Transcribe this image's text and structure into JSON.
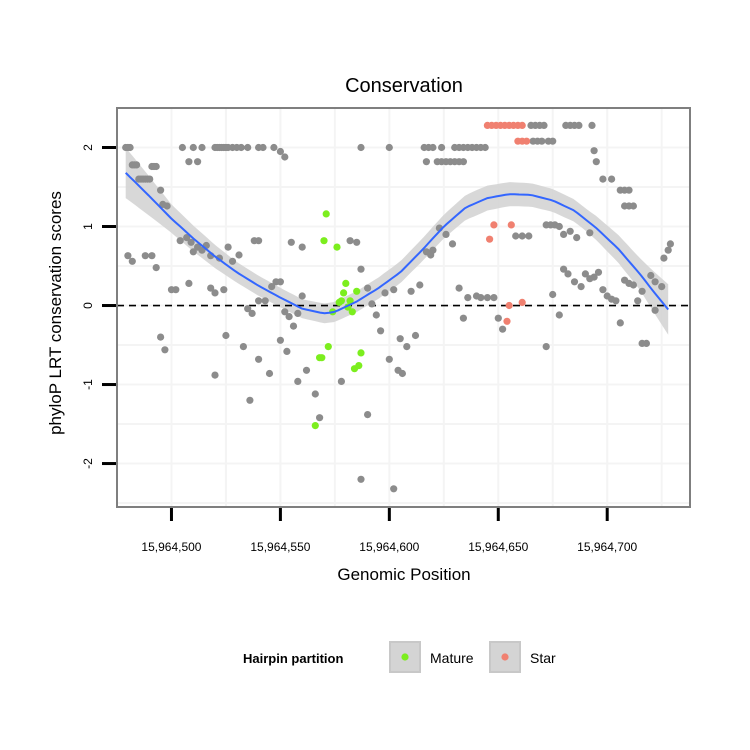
{
  "chart_data": {
    "type": "scatter",
    "title": "Conservation",
    "xlabel": "Genomic Position",
    "ylabel": "phyloP LRT conservation scores",
    "xlim": [
      15964475,
      15964738
    ],
    "ylim": [
      -2.55,
      2.5
    ],
    "x_ticks": [
      {
        "value": 15964500,
        "label": "15,964,500"
      },
      {
        "value": 15964550,
        "label": "15,964,550"
      },
      {
        "value": 15964600,
        "label": "15,964,600"
      },
      {
        "value": 15964650,
        "label": "15,964,650"
      },
      {
        "value": 15964700,
        "label": "15,964,700"
      }
    ],
    "y_ticks": [
      {
        "value": -2,
        "label": "-2"
      },
      {
        "value": -1,
        "label": "-1"
      },
      {
        "value": 0,
        "label": "0"
      },
      {
        "value": 1,
        "label": "1"
      },
      {
        "value": 2,
        "label": "2"
      }
    ],
    "reference_line": {
      "y": 0,
      "style": "dashed"
    },
    "grid": true,
    "colors": {
      "other": "#8c8c8c",
      "mature": "#7cee1e",
      "star": "#f08070",
      "smooth": "#3366ff",
      "band": "#d4d4d4",
      "panel_border": "#7f7f7f",
      "grid": "#f4f4f4"
    },
    "series": [
      {
        "name": "Other",
        "points": [
          [
            15964479,
            2.0
          ],
          [
            15964480,
            2.0
          ],
          [
            15964481,
            2.0
          ],
          [
            15964482,
            1.78
          ],
          [
            15964483,
            1.78
          ],
          [
            15964484,
            1.78
          ],
          [
            15964485,
            1.6
          ],
          [
            15964486,
            1.6
          ],
          [
            15964487,
            1.6
          ],
          [
            15964488,
            1.6
          ],
          [
            15964489,
            1.6
          ],
          [
            15964490,
            1.6
          ],
          [
            15964491,
            1.76
          ],
          [
            15964492,
            1.76
          ],
          [
            15964493,
            1.76
          ],
          [
            15964495,
            1.46
          ],
          [
            15964496,
            1.28
          ],
          [
            15964498,
            1.26
          ],
          [
            15964505,
            2.0
          ],
          [
            15964510,
            2.0
          ],
          [
            15964508,
            1.82
          ],
          [
            15964512,
            1.82
          ],
          [
            15964514,
            2.0
          ],
          [
            15964520,
            2.0
          ],
          [
            15964521,
            2.0
          ],
          [
            15964522,
            2.0
          ],
          [
            15964523,
            2.0
          ],
          [
            15964524,
            2.0
          ],
          [
            15964525,
            2.0
          ],
          [
            15964526,
            2.0
          ],
          [
            15964528,
            2.0
          ],
          [
            15964530,
            2.0
          ],
          [
            15964532,
            2.0
          ],
          [
            15964535,
            2.0
          ],
          [
            15964540,
            2.0
          ],
          [
            15964542,
            2.0
          ],
          [
            15964547,
            2.0
          ],
          [
            15964550,
            1.95
          ],
          [
            15964552,
            1.88
          ],
          [
            15964480,
            0.63
          ],
          [
            15964482,
            0.56
          ],
          [
            15964488,
            0.63
          ],
          [
            15964491,
            0.63
          ],
          [
            15964493,
            0.48
          ],
          [
            15964504,
            0.82
          ],
          [
            15964507,
            0.86
          ],
          [
            15964509,
            0.8
          ],
          [
            15964510,
            0.68
          ],
          [
            15964512,
            0.74
          ],
          [
            15964514,
            0.7
          ],
          [
            15964516,
            0.76
          ],
          [
            15964518,
            0.63
          ],
          [
            15964522,
            0.6
          ],
          [
            15964526,
            0.74
          ],
          [
            15964528,
            0.56
          ],
          [
            15964531,
            0.64
          ],
          [
            15964538,
            0.82
          ],
          [
            15964540,
            0.82
          ],
          [
            15964500,
            0.2
          ],
          [
            15964502,
            0.2
          ],
          [
            15964508,
            0.28
          ],
          [
            15964518,
            0.22
          ],
          [
            15964520,
            0.16
          ],
          [
            15964524,
            0.2
          ],
          [
            15964535,
            -0.04
          ],
          [
            15964537,
            -0.1
          ],
          [
            15964540,
            0.06
          ],
          [
            15964543,
            0.06
          ],
          [
            15964546,
            0.24
          ],
          [
            15964548,
            0.3
          ],
          [
            15964550,
            0.3
          ],
          [
            15964552,
            -0.08
          ],
          [
            15964554,
            -0.14
          ],
          [
            15964556,
            -0.26
          ],
          [
            15964558,
            -0.1
          ],
          [
            15964560,
            0.12
          ],
          [
            15964495,
            -0.4
          ],
          [
            15964497,
            -0.56
          ],
          [
            15964520,
            -0.88
          ],
          [
            15964525,
            -0.38
          ],
          [
            15964533,
            -0.52
          ],
          [
            15964540,
            -0.68
          ],
          [
            15964545,
            -0.86
          ],
          [
            15964550,
            -0.44
          ],
          [
            15964553,
            -0.58
          ],
          [
            15964558,
            -0.96
          ],
          [
            15964562,
            -0.82
          ],
          [
            15964566,
            -1.12
          ],
          [
            15964568,
            -1.42
          ],
          [
            15964578,
            -0.96
          ],
          [
            15964536,
            -1.2
          ],
          [
            15964555,
            0.8
          ],
          [
            15964560,
            0.74
          ],
          [
            15964582,
            0.82
          ],
          [
            15964585,
            0.8
          ],
          [
            15964587,
            0.46
          ],
          [
            15964590,
            0.22
          ],
          [
            15964592,
            0.02
          ],
          [
            15964594,
            -0.12
          ],
          [
            15964596,
            -0.32
          ],
          [
            15964600,
            -0.68
          ],
          [
            15964604,
            -0.82
          ],
          [
            15964606,
            -0.86
          ],
          [
            15964605,
            -0.42
          ],
          [
            15964608,
            -0.52
          ],
          [
            15964612,
            -0.38
          ],
          [
            15964598,
            0.16
          ],
          [
            15964602,
            0.2
          ],
          [
            15964610,
            0.18
          ],
          [
            15964614,
            0.26
          ],
          [
            15964617,
            0.68
          ],
          [
            15964619,
            0.64
          ],
          [
            15964620,
            0.7
          ],
          [
            15964587,
            -2.2
          ],
          [
            15964590,
            -1.38
          ],
          [
            15964602,
            -2.32
          ],
          [
            15964587,
            2.0
          ],
          [
            15964600,
            2.0
          ],
          [
            15964616,
            2.0
          ],
          [
            15964618,
            2.0
          ],
          [
            15964620,
            2.0
          ],
          [
            15964617,
            1.82
          ],
          [
            15964622,
            1.82
          ],
          [
            15964624,
            1.82
          ],
          [
            15964626,
            1.82
          ],
          [
            15964628,
            1.82
          ],
          [
            15964630,
            1.82
          ],
          [
            15964632,
            1.82
          ],
          [
            15964634,
            1.82
          ],
          [
            15964636,
            2.0
          ],
          [
            15964638,
            2.0
          ],
          [
            15964640,
            2.0
          ],
          [
            15964642,
            2.0
          ],
          [
            15964644,
            2.0
          ],
          [
            15964624,
            2.0
          ],
          [
            15964630,
            2.0
          ],
          [
            15964632,
            2.0
          ],
          [
            15964634,
            2.0
          ],
          [
            15964665,
            2.28
          ],
          [
            15964667,
            2.28
          ],
          [
            15964669,
            2.28
          ],
          [
            15964671,
            2.28
          ],
          [
            15964666,
            2.08
          ],
          [
            15964668,
            2.08
          ],
          [
            15964670,
            2.08
          ],
          [
            15964673,
            2.08
          ],
          [
            15964675,
            2.08
          ],
          [
            15964681,
            2.28
          ],
          [
            15964683,
            2.28
          ],
          [
            15964685,
            2.28
          ],
          [
            15964687,
            2.28
          ],
          [
            15964693,
            2.28
          ],
          [
            15964694,
            1.96
          ],
          [
            15964695,
            1.82
          ],
          [
            15964698,
            1.6
          ],
          [
            15964702,
            1.6
          ],
          [
            15964706,
            1.46
          ],
          [
            15964708,
            1.46
          ],
          [
            15964710,
            1.46
          ],
          [
            15964708,
            1.26
          ],
          [
            15964710,
            1.26
          ],
          [
            15964712,
            1.26
          ],
          [
            15964672,
            1.02
          ],
          [
            15964674,
            1.02
          ],
          [
            15964676,
            1.02
          ],
          [
            15964678,
            1.0
          ],
          [
            15964680,
            0.9
          ],
          [
            15964683,
            0.94
          ],
          [
            15964686,
            0.86
          ],
          [
            15964692,
            0.92
          ],
          [
            15964658,
            0.88
          ],
          [
            15964661,
            0.88
          ],
          [
            15964664,
            0.88
          ],
          [
            15964623,
            0.98
          ],
          [
            15964626,
            0.9
          ],
          [
            15964629,
            0.78
          ],
          [
            15964632,
            0.22
          ],
          [
            15964634,
            -0.16
          ],
          [
            15964636,
            0.1
          ],
          [
            15964640,
            0.12
          ],
          [
            15964642,
            0.1
          ],
          [
            15964645,
            0.1
          ],
          [
            15964648,
            0.1
          ],
          [
            15964650,
            -0.16
          ],
          [
            15964652,
            -0.3
          ],
          [
            15964675,
            0.14
          ],
          [
            15964672,
            -0.52
          ],
          [
            15964678,
            -0.12
          ],
          [
            15964680,
            0.46
          ],
          [
            15964682,
            0.4
          ],
          [
            15964685,
            0.3
          ],
          [
            15964688,
            0.24
          ],
          [
            15964690,
            0.4
          ],
          [
            15964692,
            0.34
          ],
          [
            15964694,
            0.36
          ],
          [
            15964696,
            0.42
          ],
          [
            15964698,
            0.2
          ],
          [
            15964700,
            0.12
          ],
          [
            15964702,
            0.08
          ],
          [
            15964704,
            0.06
          ],
          [
            15964706,
            -0.22
          ],
          [
            15964708,
            0.32
          ],
          [
            15964710,
            0.28
          ],
          [
            15964712,
            0.26
          ],
          [
            15964716,
            0.18
          ],
          [
            15964716,
            -0.48
          ],
          [
            15964718,
            -0.48
          ],
          [
            15964720,
            0.38
          ],
          [
            15964722,
            0.3
          ],
          [
            15964725,
            0.24
          ],
          [
            15964726,
            0.6
          ],
          [
            15964728,
            0.7
          ],
          [
            15964729,
            0.78
          ],
          [
            15964714,
            0.06
          ],
          [
            15964722,
            -0.06
          ]
        ]
      },
      {
        "name": "Mature",
        "points": [
          [
            15964566,
            -1.52
          ],
          [
            15964568,
            -0.66
          ],
          [
            15964569,
            -0.66
          ],
          [
            15964570,
            0.82
          ],
          [
            15964571,
            1.16
          ],
          [
            15964572,
            -0.52
          ],
          [
            15964574,
            -0.08
          ],
          [
            15964576,
            0.74
          ],
          [
            15964577,
            0.04
          ],
          [
            15964578,
            0.06
          ],
          [
            15964579,
            0.16
          ],
          [
            15964580,
            0.28
          ],
          [
            15964581,
            -0.02
          ],
          [
            15964582,
            0.06
          ],
          [
            15964583,
            -0.08
          ],
          [
            15964584,
            -0.8
          ],
          [
            15964585,
            0.18
          ],
          [
            15964586,
            -0.76
          ],
          [
            15964587,
            -0.6
          ]
        ]
      },
      {
        "name": "Star",
        "points": [
          [
            15964645,
            2.28
          ],
          [
            15964647,
            2.28
          ],
          [
            15964649,
            2.28
          ],
          [
            15964651,
            2.28
          ],
          [
            15964653,
            2.28
          ],
          [
            15964655,
            2.28
          ],
          [
            15964657,
            2.28
          ],
          [
            15964659,
            2.28
          ],
          [
            15964661,
            2.28
          ],
          [
            15964659,
            2.08
          ],
          [
            15964661,
            2.08
          ],
          [
            15964663,
            2.08
          ],
          [
            15964646,
            0.84
          ],
          [
            15964648,
            1.02
          ],
          [
            15964656,
            1.02
          ],
          [
            15964655,
            0.0
          ],
          [
            15964654,
            -0.2
          ],
          [
            15964661,
            0.04
          ]
        ]
      }
    ],
    "smooth_fit": [
      [
        15964479,
        1.68
      ],
      [
        15964490,
        1.38
      ],
      [
        15964500,
        1.1
      ],
      [
        15964510,
        0.85
      ],
      [
        15964520,
        0.62
      ],
      [
        15964530,
        0.42
      ],
      [
        15964540,
        0.25
      ],
      [
        15964550,
        0.1
      ],
      [
        15964560,
        -0.04
      ],
      [
        15964570,
        -0.1
      ],
      [
        15964575,
        -0.08
      ],
      [
        15964585,
        0.05
      ],
      [
        15964595,
        0.22
      ],
      [
        15964605,
        0.42
      ],
      [
        15964615,
        0.7
      ],
      [
        15964625,
        1.0
      ],
      [
        15964635,
        1.24
      ],
      [
        15964645,
        1.36
      ],
      [
        15964655,
        1.41
      ],
      [
        15964665,
        1.4
      ],
      [
        15964675,
        1.33
      ],
      [
        15964685,
        1.2
      ],
      [
        15964695,
        0.98
      ],
      [
        15964705,
        0.72
      ],
      [
        15964715,
        0.4
      ],
      [
        15964722,
        0.15
      ],
      [
        15964728,
        -0.05
      ]
    ],
    "smooth_band_halfwidth": [
      [
        15964479,
        0.32
      ],
      [
        15964500,
        0.18
      ],
      [
        15964530,
        0.13
      ],
      [
        15964560,
        0.12
      ],
      [
        15964580,
        0.13
      ],
      [
        15964610,
        0.14
      ],
      [
        15964640,
        0.16
      ],
      [
        15964660,
        0.15
      ],
      [
        15964690,
        0.14
      ],
      [
        15964715,
        0.2
      ],
      [
        15964728,
        0.32
      ]
    ],
    "legend": {
      "title": "Hairpin partition",
      "position": "bottom",
      "entries": [
        {
          "label": "Mature",
          "series": "Mature"
        },
        {
          "label": "Star",
          "series": "Star"
        }
      ]
    }
  }
}
